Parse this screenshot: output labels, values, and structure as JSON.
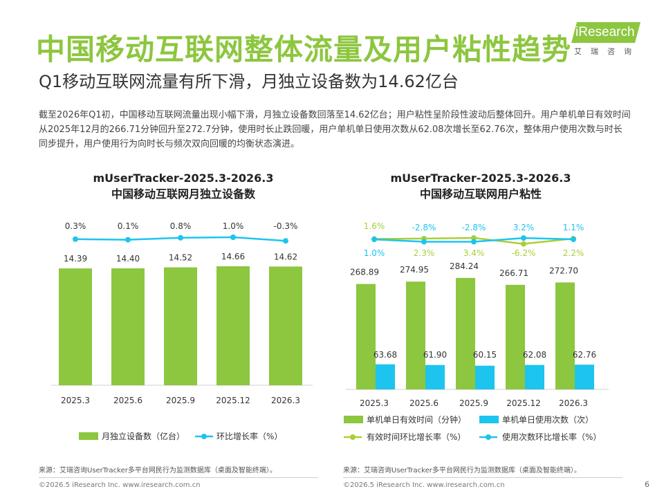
{
  "header": {
    "title": "中国移动互联网整体流量及用户粘性趋势",
    "subtitle": "Q1移动互联网流量有所下滑，月独立设备数为14.62亿台",
    "logo_text": "iResearch",
    "logo_cn": "艾瑞咨询"
  },
  "summary": "截至2026年Q1初，中国移动互联网流量出现小幅下滑，月独立设备数回落至14.62亿台；用户粘性呈阶段性波动后整体回升。用户单机单日有效时间从2025年12月的266.71分钟回升至272.7分钟，使用时长止跌回暖，用户单机单日使用次数从62.08次增长至62.76次，整体用户使用次数与时长同步提升，用户使用行为向时长与频次双向回暖的均衡状态演进。",
  "colors": {
    "accent": "#8dc63f",
    "bar_green": "#8dc63f",
    "bar_blue": "#1cc4ee",
    "line_blue": "#1cc4ee",
    "line_green": "#a9cf38"
  },
  "chart_data": [
    {
      "type": "bar",
      "title_line1": "mUserTracker-2025.3-2026.3",
      "title_line2": "中国移动互联网月独立设备数",
      "categories": [
        "2025.3",
        "2025.6",
        "2025.9",
        "2025.12",
        "2026.3"
      ],
      "series": [
        {
          "name": "月独立设备数（亿台）",
          "type": "bar",
          "values": [
            14.39,
            14.4,
            14.52,
            14.66,
            14.62
          ],
          "labels": [
            "14.39",
            "14.40",
            "14.52",
            "14.66",
            "14.62"
          ]
        },
        {
          "name": "环比增长率（%）",
          "type": "line",
          "values": [
            0.3,
            0.1,
            0.8,
            1.0,
            -0.3
          ],
          "labels": [
            "0.3%",
            "0.1%",
            "0.8%",
            "1.0%",
            "-0.3%"
          ]
        }
      ]
    },
    {
      "type": "bar",
      "title_line1": "mUserTracker-2025.3-2026.3",
      "title_line2": "中国移动互联网用户粘性",
      "categories": [
        "2025.3",
        "2025.6",
        "2025.9",
        "2025.12",
        "2026.3"
      ],
      "series": [
        {
          "name": "单机单日有效时间（分钟）",
          "type": "bar",
          "values": [
            268.89,
            274.95,
            284.24,
            266.71,
            272.7
          ],
          "labels": [
            "268.89",
            "274.95",
            "284.24",
            "266.71",
            "272.70"
          ]
        },
        {
          "name": "单机单日使用次数（次）",
          "type": "bar",
          "values": [
            63.68,
            61.9,
            60.15,
            62.08,
            62.76
          ],
          "labels": [
            "63.68",
            "61.90",
            "60.15",
            "62.08",
            "62.76"
          ]
        },
        {
          "name": "有效时间环比增长率（%）",
          "type": "line",
          "values": [
            1.6,
            2.3,
            3.4,
            -6.2,
            2.2
          ],
          "labels": [
            "1.6%",
            "2.3%",
            "3.4%",
            "-6.2%",
            "2.2%"
          ]
        },
        {
          "name": "使用次数环比增长率（%）",
          "type": "line",
          "values": [
            1.0,
            -2.8,
            -2.8,
            3.2,
            1.1
          ],
          "labels": [
            "1.0%",
            "-2.8%",
            "-2.8%",
            "3.2%",
            "1.1%"
          ]
        }
      ]
    }
  ],
  "footer": {
    "source": "来源：艾瑞咨询UserTracker多平台网民行为监测数据库（桌面及智能终端）。",
    "copyright": "©2026.5 iResearch Inc. www.iresearch.com.cn",
    "page_number": "6"
  }
}
